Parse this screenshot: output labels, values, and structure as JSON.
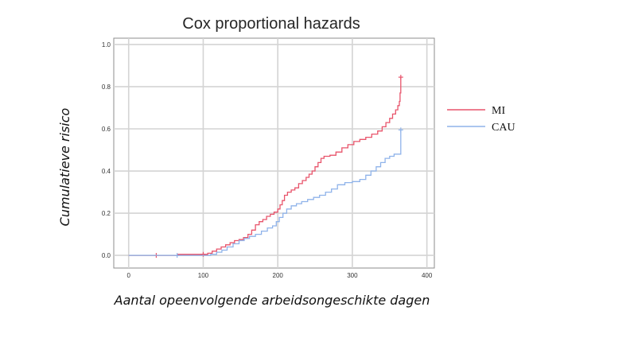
{
  "chart_data": {
    "type": "line",
    "title": "Cox proportional hazards",
    "xlabel": "Aantal opeenvolgende arbeidsongeschikte dagen",
    "ylabel": "Cumulatieve risico",
    "xlim": [
      -20,
      410
    ],
    "ylim": [
      -0.06,
      1.03
    ],
    "x_ticks": [
      0,
      100,
      200,
      300,
      400
    ],
    "x_tick_labels": [
      "0",
      "100",
      "200",
      "300",
      "400"
    ],
    "y_ticks": [
      0.0,
      0.2,
      0.4,
      0.6,
      0.8,
      1.0
    ],
    "y_tick_labels": [
      "0.0",
      "0.2",
      "0.4",
      "0.6",
      "0.8",
      "1.0"
    ],
    "grid": true,
    "legend_position": "right",
    "series": [
      {
        "name": "MI",
        "color": "#e8546b",
        "step": true,
        "points": [
          [
            0,
            0.0
          ],
          [
            65,
            0.0
          ],
          [
            66,
            0.005
          ],
          [
            100,
            0.005
          ],
          [
            106,
            0.01
          ],
          [
            112,
            0.02
          ],
          [
            118,
            0.03
          ],
          [
            124,
            0.04
          ],
          [
            130,
            0.05
          ],
          [
            136,
            0.06
          ],
          [
            142,
            0.07
          ],
          [
            148,
            0.075
          ],
          [
            154,
            0.085
          ],
          [
            160,
            0.1
          ],
          [
            165,
            0.12
          ],
          [
            170,
            0.145
          ],
          [
            175,
            0.16
          ],
          [
            180,
            0.17
          ],
          [
            185,
            0.185
          ],
          [
            190,
            0.195
          ],
          [
            195,
            0.205
          ],
          [
            200,
            0.22
          ],
          [
            203,
            0.24
          ],
          [
            206,
            0.26
          ],
          [
            209,
            0.285
          ],
          [
            213,
            0.3
          ],
          [
            218,
            0.31
          ],
          [
            223,
            0.32
          ],
          [
            228,
            0.34
          ],
          [
            233,
            0.355
          ],
          [
            238,
            0.37
          ],
          [
            242,
            0.385
          ],
          [
            246,
            0.4
          ],
          [
            250,
            0.42
          ],
          [
            254,
            0.44
          ],
          [
            258,
            0.46
          ],
          [
            262,
            0.47
          ],
          [
            270,
            0.475
          ],
          [
            278,
            0.49
          ],
          [
            286,
            0.51
          ],
          [
            294,
            0.525
          ],
          [
            302,
            0.54
          ],
          [
            310,
            0.55
          ],
          [
            318,
            0.56
          ],
          [
            326,
            0.575
          ],
          [
            334,
            0.59
          ],
          [
            340,
            0.61
          ],
          [
            345,
            0.63
          ],
          [
            350,
            0.65
          ],
          [
            354,
            0.67
          ],
          [
            358,
            0.69
          ],
          [
            361,
            0.71
          ],
          [
            363,
            0.73
          ],
          [
            364,
            0.77
          ],
          [
            365,
            0.845
          ]
        ],
        "censor_marks": [
          [
            37,
            0.0
          ],
          [
            100,
            0.005
          ],
          [
            365,
            0.845
          ]
        ]
      },
      {
        "name": "CAU",
        "color": "#8fb3ea",
        "step": true,
        "points": [
          [
            0,
            0.0
          ],
          [
            100,
            0.0
          ],
          [
            110,
            0.005
          ],
          [
            118,
            0.015
          ],
          [
            125,
            0.025
          ],
          [
            132,
            0.04
          ],
          [
            140,
            0.055
          ],
          [
            148,
            0.07
          ],
          [
            155,
            0.08
          ],
          [
            162,
            0.09
          ],
          [
            170,
            0.1
          ],
          [
            178,
            0.115
          ],
          [
            186,
            0.13
          ],
          [
            193,
            0.14
          ],
          [
            198,
            0.16
          ],
          [
            202,
            0.18
          ],
          [
            207,
            0.2
          ],
          [
            212,
            0.22
          ],
          [
            218,
            0.235
          ],
          [
            225,
            0.245
          ],
          [
            232,
            0.255
          ],
          [
            240,
            0.265
          ],
          [
            248,
            0.275
          ],
          [
            256,
            0.285
          ],
          [
            264,
            0.3
          ],
          [
            272,
            0.315
          ],
          [
            280,
            0.335
          ],
          [
            290,
            0.345
          ],
          [
            300,
            0.35
          ],
          [
            310,
            0.36
          ],
          [
            318,
            0.38
          ],
          [
            325,
            0.4
          ],
          [
            332,
            0.42
          ],
          [
            338,
            0.44
          ],
          [
            344,
            0.46
          ],
          [
            350,
            0.47
          ],
          [
            356,
            0.48
          ],
          [
            365,
            0.595
          ]
        ],
        "censor_marks": [
          [
            65,
            0.0
          ],
          [
            365,
            0.595
          ]
        ]
      }
    ]
  }
}
